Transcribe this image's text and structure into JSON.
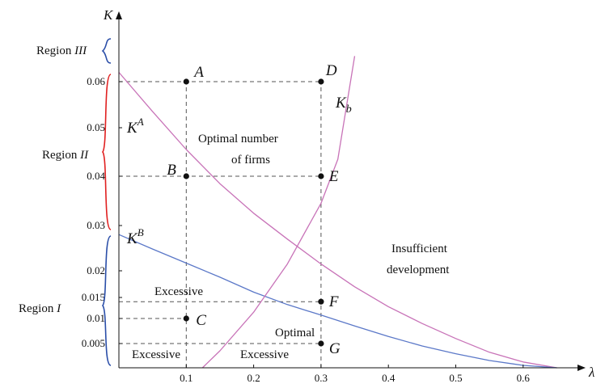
{
  "chart_data": {
    "type": "line",
    "xlabel": "λ",
    "ylabel": "K",
    "xlim": [
      0,
      0.68
    ],
    "ylim": [
      0,
      0.068
    ],
    "x_ticks": [
      "0.1",
      "0.2",
      "0.3",
      "0.4",
      "0.5",
      "0.6"
    ],
    "y_ticks": [
      {
        "label": "0.005",
        "value": 0.005
      },
      {
        "label": "0.01",
        "value": 0.01
      },
      {
        "label": "0.015",
        "value": 0.015
      },
      {
        "label": "0.02",
        "value": 0.02
      },
      {
        "label": "0.03",
        "value": 0.03
      },
      {
        "label": "0.04",
        "value": 0.04
      },
      {
        "label": "0.05",
        "value": 0.05
      },
      {
        "label": "0.06",
        "value": 0.06
      }
    ],
    "series": [
      {
        "name": "K^A",
        "label": "K",
        "sup": "A",
        "color": "#c873b8",
        "x": [
          0,
          0.05,
          0.1,
          0.15,
          0.2,
          0.25,
          0.3,
          0.35,
          0.4,
          0.45,
          0.5,
          0.55,
          0.6,
          0.65
        ],
        "y": [
          0.062,
          0.0535,
          0.0455,
          0.0385,
          0.0325,
          0.027,
          0.0215,
          0.017,
          0.0128,
          0.009,
          0.006,
          0.0032,
          0.0012,
          0.0
        ]
      },
      {
        "name": "K^B",
        "label": "K",
        "sup": "B",
        "color": "#5b78c8",
        "x": [
          0,
          0.05,
          0.1,
          0.15,
          0.2,
          0.25,
          0.3,
          0.35,
          0.4,
          0.45,
          0.5,
          0.55,
          0.6,
          0.65
        ],
        "y": [
          0.028,
          0.0248,
          0.0217,
          0.0188,
          0.016,
          0.0133,
          0.0108,
          0.0085,
          0.0064,
          0.0045,
          0.0029,
          0.0015,
          0.0005,
          0.0
        ]
      },
      {
        "name": "K_b",
        "label": "K",
        "sub": "b",
        "color": "#c873b8",
        "x": [
          0.124,
          0.15,
          0.2,
          0.25,
          0.3,
          0.325,
          0.35
        ],
        "y": [
          0.0,
          0.0035,
          0.0115,
          0.0215,
          0.0345,
          0.0435,
          0.0655
        ]
      }
    ],
    "points": [
      {
        "label": "A",
        "x": 0.1,
        "y": 0.06
      },
      {
        "label": "D",
        "x": 0.3,
        "y": 0.06
      },
      {
        "label": "B",
        "x": 0.1,
        "y": 0.04
      },
      {
        "label": "E",
        "x": 0.3,
        "y": 0.04
      },
      {
        "label": "F",
        "x": 0.3,
        "y": 0.014
      },
      {
        "label": "C",
        "x": 0.1,
        "y": 0.01
      },
      {
        "label": "G",
        "x": 0.3,
        "y": 0.005
      }
    ],
    "guides": [
      {
        "x1": 0,
        "y1": 0.06,
        "x2": 0.3,
        "y2": 0.06
      },
      {
        "x1": 0,
        "y1": 0.04,
        "x2": 0.3,
        "y2": 0.04
      },
      {
        "x1": 0,
        "y1": 0.014,
        "x2": 0.3,
        "y2": 0.014
      },
      {
        "x1": 0,
        "y1": 0.01,
        "x2": 0.1,
        "y2": 0.01
      },
      {
        "x1": 0,
        "y1": 0.005,
        "x2": 0.3,
        "y2": 0.005
      },
      {
        "x1": 0.1,
        "y1": 0,
        "x2": 0.1,
        "y2": 0.06
      },
      {
        "x1": 0.3,
        "y1": 0,
        "x2": 0.3,
        "y2": 0.06
      }
    ],
    "annotations": {
      "optimal_firms_line1": "Optimal number",
      "optimal_firms_line2": "of firms",
      "insufficient_line1": "Insufficient",
      "insufficient_line2": "development",
      "excessive_upper": "Excessive",
      "optimal_lower": "Optimal",
      "excessive_bottom_left": "Excessive",
      "excessive_bottom_right": "Excessive"
    },
    "regions": [
      {
        "prefix": "Region ",
        "roman": "III",
        "brace_color": "#2a4ea8"
      },
      {
        "prefix": "Region ",
        "roman": "II",
        "brace_color": "#e02020"
      },
      {
        "prefix": "Region ",
        "roman": "I",
        "brace_color": "#2a4ea8"
      }
    ]
  }
}
